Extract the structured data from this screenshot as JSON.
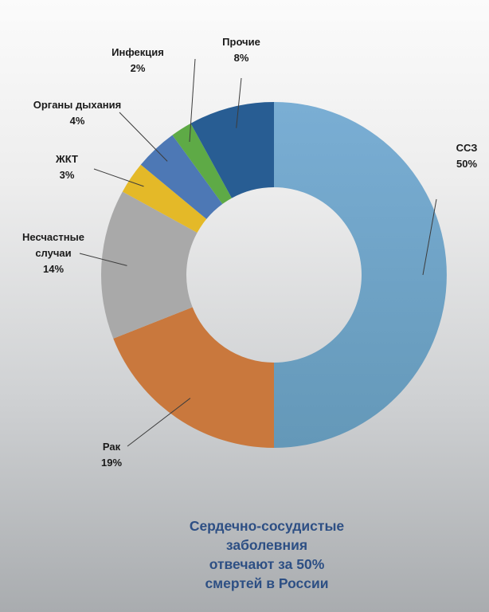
{
  "chart_data": {
    "type": "pie",
    "donut": true,
    "title": "",
    "slices": [
      {
        "label": "ССЗ",
        "value": 50,
        "value_label": "50%",
        "color": "#6fa1c8"
      },
      {
        "label": "Рак",
        "value": 19,
        "value_label": "19%",
        "color": "#c9783d"
      },
      {
        "label": "Несчастные случаи",
        "label_lines": [
          "Несчастные",
          "случаи"
        ],
        "value": 14,
        "value_label": "14%",
        "color": "#a9a9a9"
      },
      {
        "label": "ЖКТ",
        "value": 3,
        "value_label": "3%",
        "color": "#e4b928"
      },
      {
        "label": "Органы дыхания",
        "value": 4,
        "value_label": "4%",
        "color": "#4d78b5"
      },
      {
        "label": "Инфекция",
        "value": 2,
        "value_label": "2%",
        "color": "#5eaa46"
      },
      {
        "label": "Прочие",
        "value": 8,
        "value_label": "8%",
        "color": "#285d93"
      }
    ],
    "legend": "none"
  },
  "caption_lines": [
    "Сердечно-сосудистые",
    "заболевния",
    "отвечают за 50%",
    "смертей в России"
  ]
}
